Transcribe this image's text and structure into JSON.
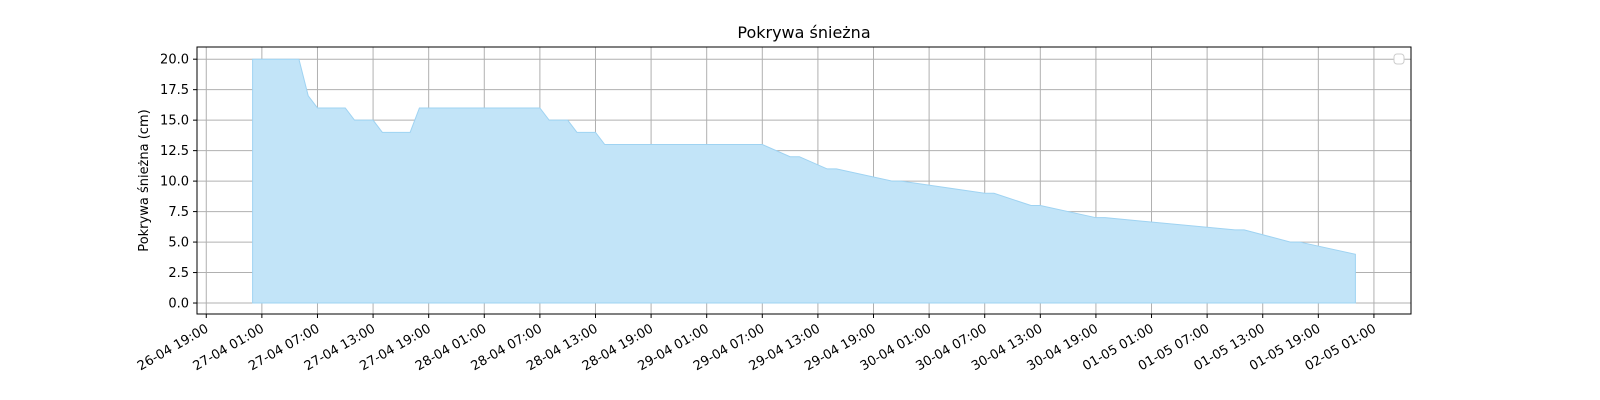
{
  "chart_data": {
    "type": "area",
    "title": "Pokrywa śnieżna",
    "xlabel": "",
    "ylabel": "Pokrywa śnieżna (cm)",
    "ylim": [
      -0.9,
      21.0
    ],
    "xlim": [
      "2024-04-26T18:00",
      "2024-05-02T05:00"
    ],
    "grid": true,
    "legend": "top-right",
    "fill_color": "#c2e4f8",
    "line_color": "#9fd3f2",
    "y_ticks": [
      "0.0",
      "2.5",
      "5.0",
      "7.5",
      "10.0",
      "12.5",
      "15.0",
      "17.5",
      "20.0"
    ],
    "x_ticks": [
      {
        "t": "2024-04-26T19:00",
        "label": "26-04 19:00"
      },
      {
        "t": "2024-04-27T01:00",
        "label": "27-04 01:00"
      },
      {
        "t": "2024-04-27T07:00",
        "label": "27-04 07:00"
      },
      {
        "t": "2024-04-27T13:00",
        "label": "27-04 13:00"
      },
      {
        "t": "2024-04-27T19:00",
        "label": "27-04 19:00"
      },
      {
        "t": "2024-04-28T01:00",
        "label": "28-04 01:00"
      },
      {
        "t": "2024-04-28T07:00",
        "label": "28-04 07:00"
      },
      {
        "t": "2024-04-28T13:00",
        "label": "28-04 13:00"
      },
      {
        "t": "2024-04-28T19:00",
        "label": "28-04 19:00"
      },
      {
        "t": "2024-04-29T01:00",
        "label": "29-04 01:00"
      },
      {
        "t": "2024-04-29T07:00",
        "label": "29-04 07:00"
      },
      {
        "t": "2024-04-29T13:00",
        "label": "29-04 13:00"
      },
      {
        "t": "2024-04-29T19:00",
        "label": "29-04 19:00"
      },
      {
        "t": "2024-04-30T01:00",
        "label": "30-04 01:00"
      },
      {
        "t": "2024-04-30T07:00",
        "label": "30-04 07:00"
      },
      {
        "t": "2024-04-30T13:00",
        "label": "30-04 13:00"
      },
      {
        "t": "2024-04-30T19:00",
        "label": "30-04 19:00"
      },
      {
        "t": "2024-05-01T01:00",
        "label": "01-05 01:00"
      },
      {
        "t": "2024-05-01T07:00",
        "label": "01-05 07:00"
      },
      {
        "t": "2024-05-01T13:00",
        "label": "01-05 13:00"
      },
      {
        "t": "2024-05-01T19:00",
        "label": "01-05 19:00"
      },
      {
        "t": "2024-05-02T01:00",
        "label": "02-05 01:00"
      }
    ],
    "x": [
      "2024-04-27T00:00",
      "2024-04-27T05:00",
      "2024-04-27T06:00",
      "2024-04-27T07:00",
      "2024-04-27T10:00",
      "2024-04-27T11:00",
      "2024-04-27T13:00",
      "2024-04-27T14:00",
      "2024-04-27T17:00",
      "2024-04-27T18:00",
      "2024-04-28T07:00",
      "2024-04-28T08:00",
      "2024-04-28T10:00",
      "2024-04-28T11:00",
      "2024-04-28T13:00",
      "2024-04-28T14:00",
      "2024-04-29T06:00",
      "2024-04-29T07:00",
      "2024-04-29T10:00",
      "2024-04-29T11:00",
      "2024-04-29T14:00",
      "2024-04-29T15:00",
      "2024-04-29T21:00",
      "2024-04-29T22:00",
      "2024-04-30T07:00",
      "2024-04-30T08:00",
      "2024-04-30T12:00",
      "2024-04-30T13:00",
      "2024-04-30T19:00",
      "2024-04-30T20:00",
      "2024-05-01T10:00",
      "2024-05-01T11:00",
      "2024-05-01T16:00",
      "2024-05-01T17:00",
      "2024-05-01T23:00"
    ],
    "y": [
      20,
      20,
      17,
      16,
      16,
      15,
      15,
      14,
      14,
      16,
      16,
      15,
      15,
      14,
      14,
      13,
      13,
      13,
      12,
      12,
      11,
      11,
      10,
      10,
      9,
      9,
      8,
      8,
      7,
      7,
      6,
      6,
      5,
      5,
      4
    ]
  }
}
